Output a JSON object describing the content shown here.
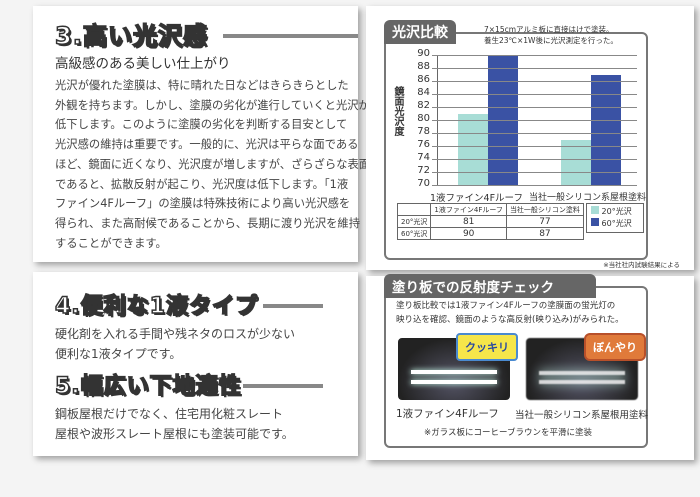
{
  "section3": {
    "title": "3.高い光沢感",
    "subtitle": "高級感のある美しい仕上がり",
    "lines": [
      "光沢が優れた塗膜は、特に晴れた日などはきらきらとした",
      "外観を持ちます。しかし、塗膜の劣化が進行していくと光沢が",
      "低下します。このように塗膜の劣化を判断する目安として",
      "光沢感の維持は重要です。一般的に、光沢は平らな面である",
      "ほど、鏡面に近くなり、光沢度が増しますが、ざらざらな表面",
      "であると、拡散反射が起こり、光沢度は低下します。「1液",
      "ファイン4Fルーフ」の塗膜は特殊技術により高い光沢感を",
      "得られ、また高耐候であることから、長期に渡り光沢を維持",
      "することができます。"
    ]
  },
  "section4": {
    "title": "4.便利な1液タイプ",
    "lines": [
      "硬化剤を入れる手間や残ネタのロスが少ない",
      "便利な1液タイプです。"
    ]
  },
  "section5": {
    "title": "5.幅広い下地適性",
    "lines": [
      "鋼板屋根だけでなく、住宅用化粧スレート",
      "屋根や波形スレート屋根にも塗装可能です。"
    ]
  },
  "gloss": {
    "tab": "光沢比較",
    "note": [
      "7×15cmアルミ板に直接はけで塗装。",
      "養生23℃×1W後に光沢測定を行った。"
    ],
    "footnote": "※当社社内試験結果による",
    "table": {
      "headers": [
        "",
        "1液ファイン4Fルーフ",
        "当社一般シリコン塗料"
      ],
      "rows": [
        [
          "20°光沢",
          "81",
          "77"
        ],
        [
          "60°光沢",
          "90",
          "87"
        ]
      ]
    }
  },
  "chart_data": {
    "type": "bar",
    "ylabel": "鏡面光沢度",
    "ylim": [
      70,
      90
    ],
    "yticks": [
      "90",
      "88",
      "86",
      "84",
      "82",
      "80",
      "78",
      "76",
      "74",
      "72",
      "70"
    ],
    "categories": [
      "1液ファイン4Fルーフ",
      "当社一般シリコン系屋根塗料"
    ],
    "series": [
      {
        "name": "20°光沢",
        "values": [
          81,
          77
        ],
        "color": "#a8ddd6"
      },
      {
        "name": "60°光沢",
        "values": [
          90,
          87
        ],
        "color": "#3a52a4"
      }
    ],
    "legend": "right-below",
    "grid": true
  },
  "reflect": {
    "tab": "塗り板での反射度チェック",
    "desc": [
      "塗り板比較では1液ファイン4Fルーフの塗膜面の蛍光灯の",
      "映り込を確認、鏡面のような高反射(映り込み)がみられた。"
    ],
    "badge1": "クッキリ",
    "badge2": "ぼんやり",
    "caption1": "1液ファイン4Fルーフ",
    "caption2": "当社一般シリコン系屋根用塗料",
    "note": "※ガラス板にコーヒーブラウンを平滑に塗装"
  }
}
